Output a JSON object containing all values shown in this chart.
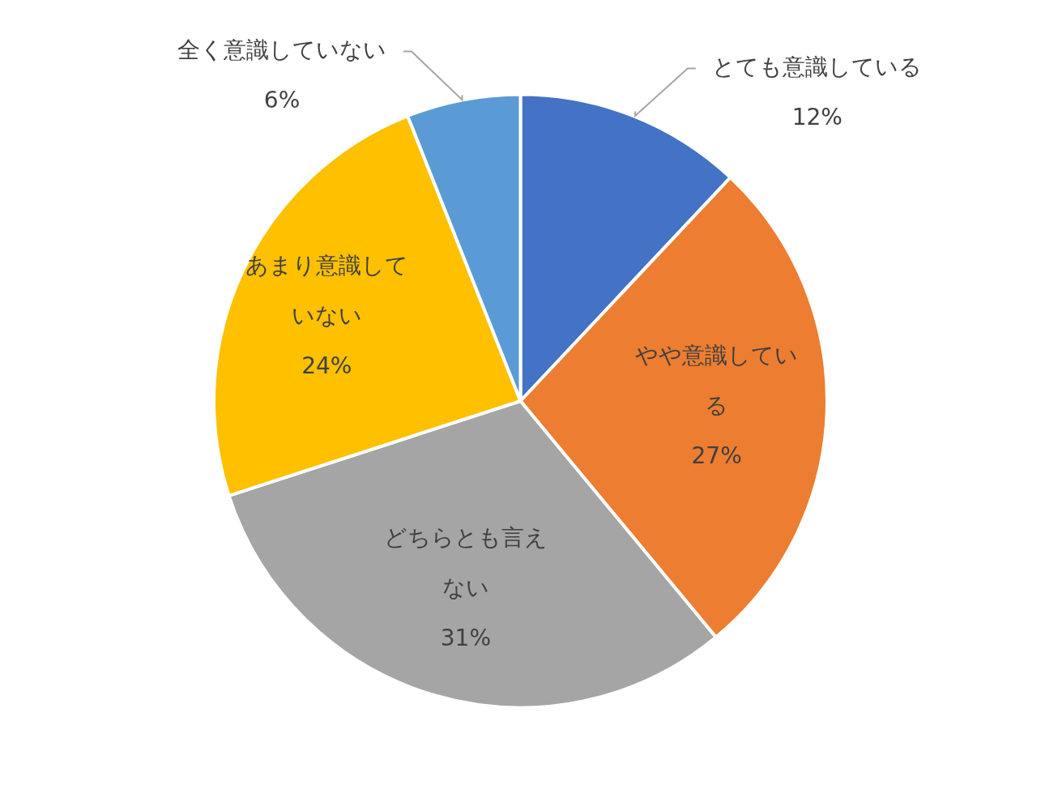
{
  "chart_data": {
    "type": "pie",
    "categories": [
      "とても意識している",
      "やや意識している",
      "どちらとも言えない",
      "あまり意識していない",
      "全く意識していない"
    ],
    "values": [
      12,
      27,
      31,
      24,
      6
    ],
    "colors": [
      "#4472c4",
      "#ed7d31",
      "#a5a5a5",
      "#ffc000",
      "#5b9bd5"
    ],
    "value_labels": [
      "12%",
      "27%",
      "31%",
      "24%",
      "6%"
    ],
    "legend": false
  }
}
